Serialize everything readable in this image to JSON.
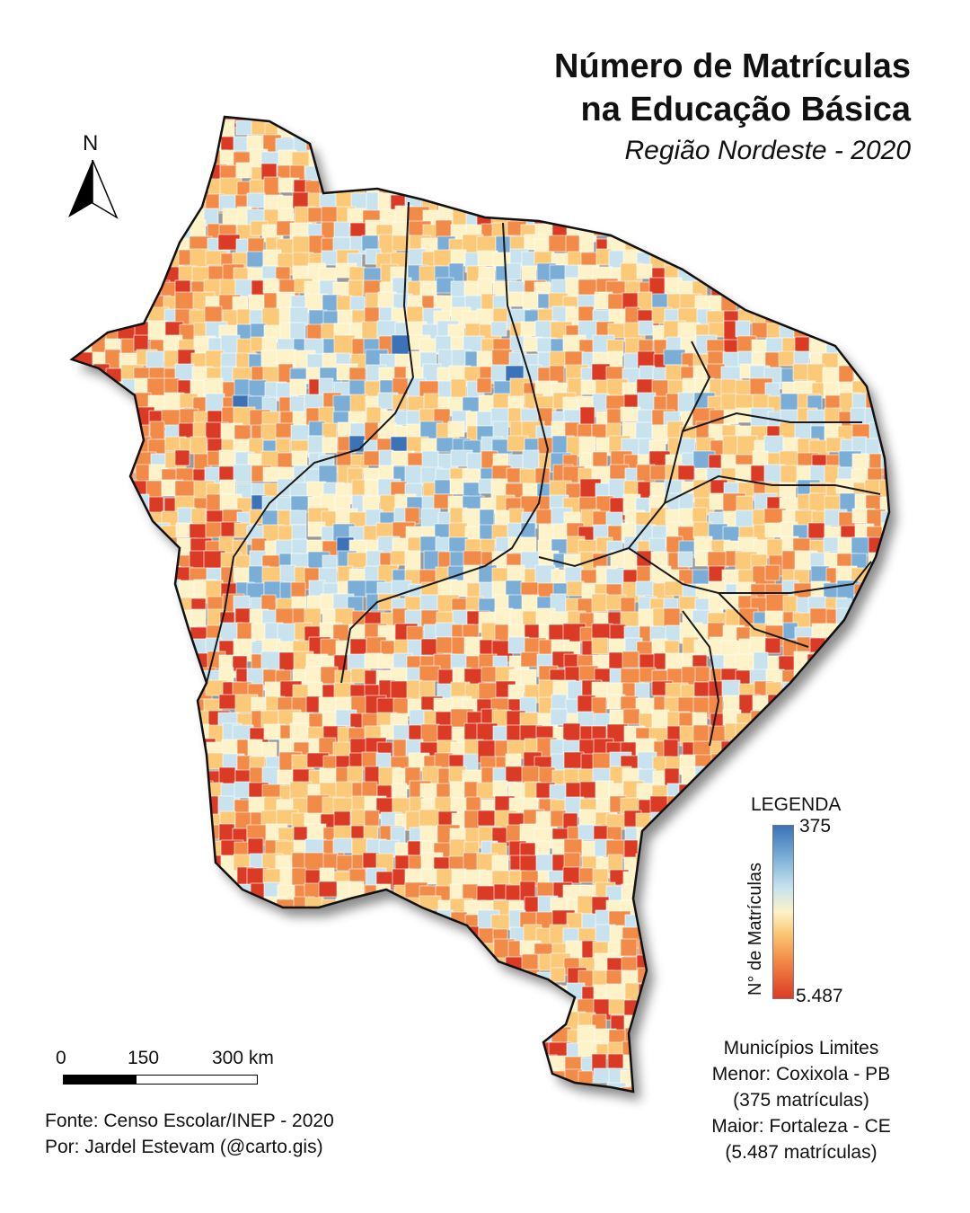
{
  "title": {
    "line1": "Número de Matrículas",
    "line2": "na Educação Básica",
    "subtitle": "Região Nordeste -  2020"
  },
  "north_arrow": {
    "label": "N",
    "icon": "north-arrow-icon"
  },
  "legend": {
    "title": "LEGENDA",
    "axis_label": "N° de Matrículas",
    "max_label": "375",
    "min_label": "5.487",
    "colors": [
      "#3b72b8",
      "#7aaed6",
      "#c8e3ee",
      "#fdf2c8",
      "#fbc977",
      "#f28a48",
      "#db3b24"
    ]
  },
  "limits": {
    "heading": "Municípios Limites",
    "min_line": "Menor: Coxixola - PB",
    "min_value": "(375 matrículas)",
    "max_line": "Maior: Fortaleza - CE",
    "max_value": "(5.487 matrículas)"
  },
  "scale_bar": {
    "labels": [
      "0",
      "150",
      "300 km"
    ]
  },
  "credits": {
    "source": "Fonte:  Censo Escolar/INEP - 2020",
    "author": "Por: Jardel Estevam (@carto.gis)"
  }
}
